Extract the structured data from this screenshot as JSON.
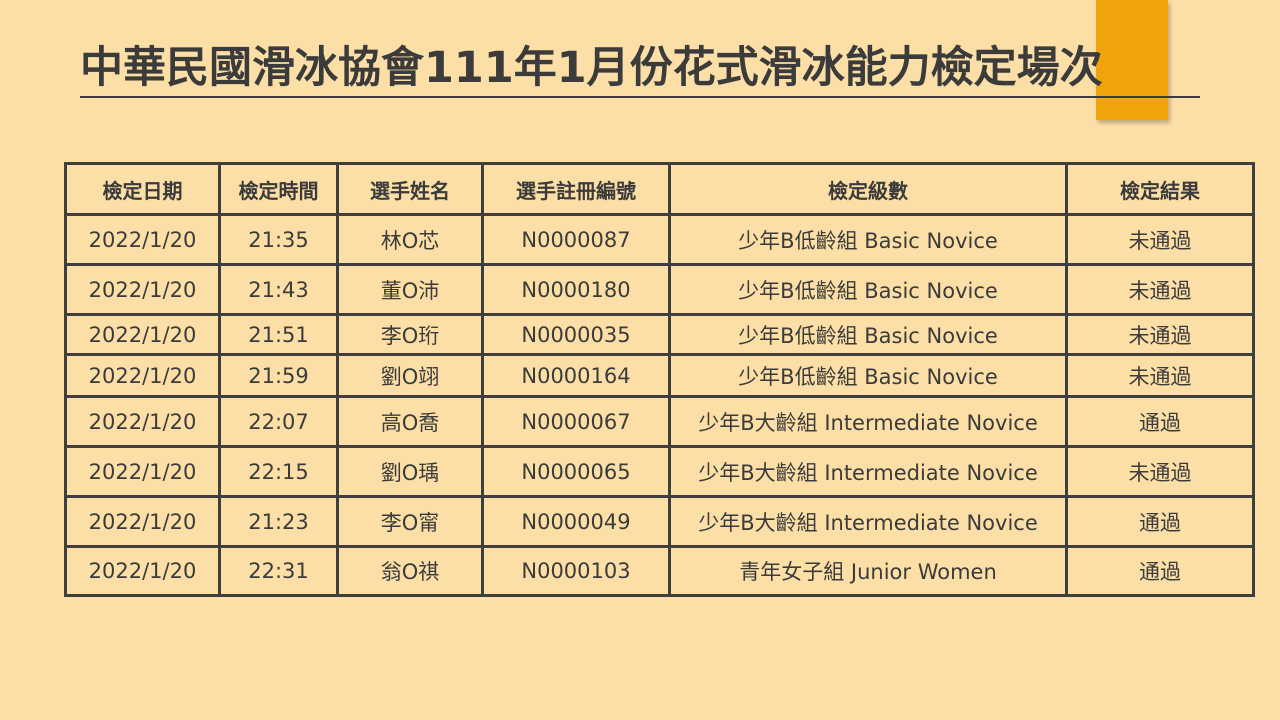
{
  "title": "中華民國滑冰協會111年1月份花式滑冰能力檢定場次",
  "accent_color": "#f0a30a",
  "table": {
    "headers": [
      "檢定日期",
      "檢定時間",
      "選手姓名",
      "選手註冊編號",
      "檢定級數",
      "檢定結果"
    ],
    "rows": [
      [
        "2022/1/20",
        "21:35",
        "林O芯",
        "N0000087",
        "少年B低齡組 Basic Novice",
        "未通過"
      ],
      [
        "2022/1/20",
        "21:43",
        "董O沛",
        "N0000180",
        "少年B低齡組 Basic Novice",
        "未通過"
      ],
      [
        "2022/1/20",
        "21:51",
        "李O珩",
        "N0000035",
        "少年B低齡組 Basic Novice",
        "未通過"
      ],
      [
        "2022/1/20",
        "21:59",
        "劉O翊",
        "N0000164",
        "少年B低齡組 Basic Novice",
        "未通過"
      ],
      [
        "2022/1/20",
        "22:07",
        "高O喬",
        "N0000067",
        "少年B大齡組 Intermediate Novice",
        "通過"
      ],
      [
        "2022/1/20",
        "22:15",
        "劉O瑀",
        "N0000065",
        "少年B大齡組 Intermediate Novice",
        "未通過"
      ],
      [
        "2022/1/20",
        "21:23",
        "李O甯",
        "N0000049",
        "少年B大齡組 Intermediate Novice",
        "通過"
      ],
      [
        "2022/1/20",
        "22:31",
        "翁O祺",
        "N0000103",
        "青年女子組 Junior Women",
        "通過"
      ]
    ]
  }
}
